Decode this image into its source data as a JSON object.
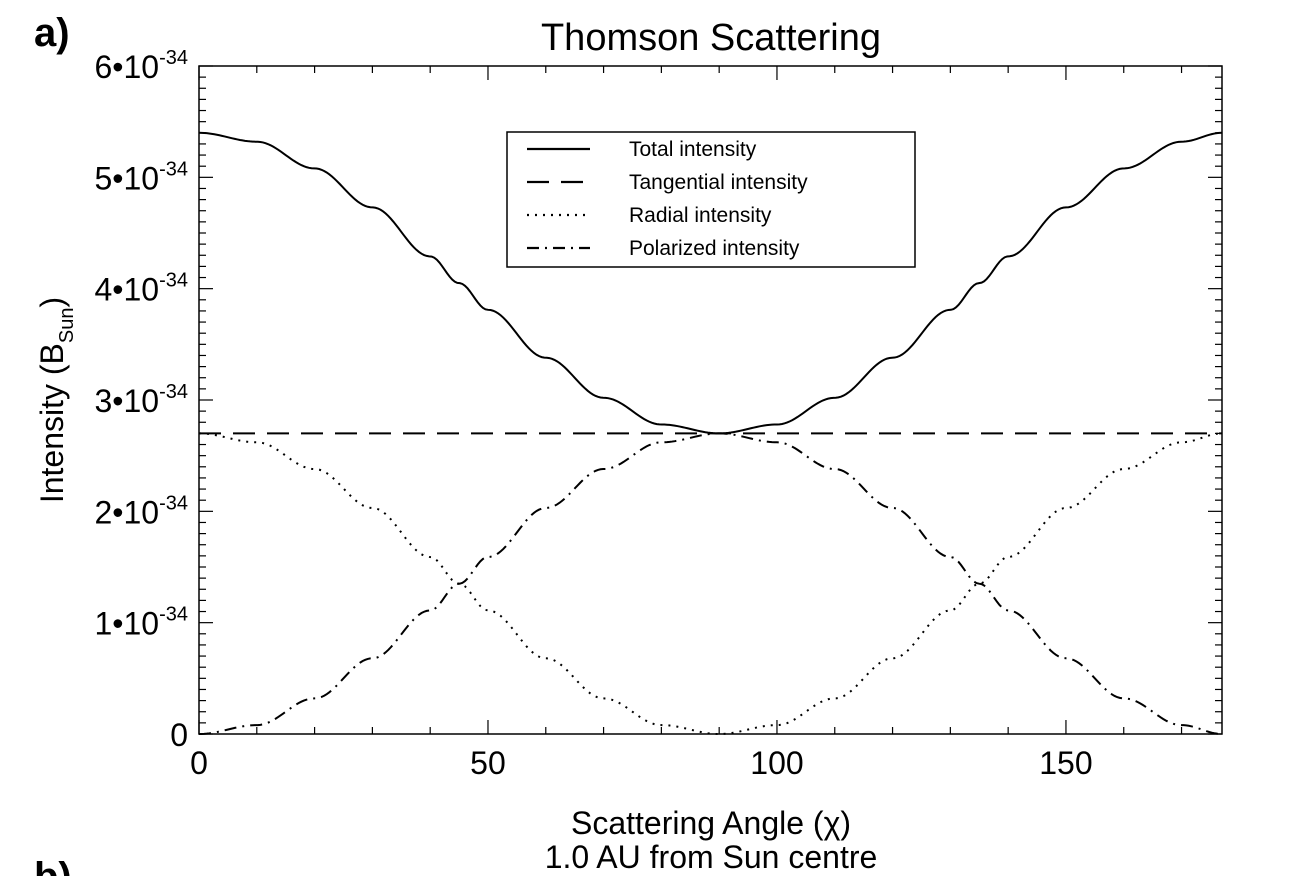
{
  "panel_labels": {
    "a": "a)",
    "b": "b)"
  },
  "subtitle": "1.0 AU from Sun centre",
  "chart_data": {
    "type": "line",
    "title": "Thomson Scattering",
    "xlabel": "Scattering Angle (χ)",
    "ylabel": {
      "main": "Intensity (B",
      "sub": "Sun",
      "close": ")"
    },
    "xlim": [
      0,
      177
    ],
    "ylim": [
      0,
      6e-34
    ],
    "x_ticks": [
      0,
      50,
      100,
      150
    ],
    "x_tick_labels": [
      "0",
      "50",
      "100",
      "150"
    ],
    "y_ticks": [
      0,
      1e-34,
      2e-34,
      3e-34,
      4e-34,
      5e-34,
      6e-34
    ],
    "y_tick_labels": [
      {
        "base": "0",
        "exp": ""
      },
      {
        "base": "1•10",
        "exp": "-34"
      },
      {
        "base": "2•10",
        "exp": "-34"
      },
      {
        "base": "3•10",
        "exp": "-34"
      },
      {
        "base": "4•10",
        "exp": "-34"
      },
      {
        "base": "5•10",
        "exp": "-34"
      },
      {
        "base": "6•10",
        "exp": "-34"
      }
    ],
    "x_minor_step": 10,
    "y_minor_step": 1e-35,
    "legend_position": "top-center",
    "x": [
      0,
      10,
      20,
      30,
      40,
      45,
      50,
      60,
      70,
      80,
      90,
      100,
      110,
      120,
      130,
      135,
      140,
      150,
      160,
      170,
      177
    ],
    "series": [
      {
        "name": "Total intensity",
        "dash": "solid",
        "values": [
          5.4e-34,
          5.32e-34,
          5.08e-34,
          4.73e-34,
          4.29e-34,
          4.05e-34,
          3.81e-34,
          3.38e-34,
          3.02e-34,
          2.78e-34,
          2.7e-34,
          2.78e-34,
          3.02e-34,
          3.38e-34,
          3.81e-34,
          4.05e-34,
          4.29e-34,
          4.73e-34,
          5.08e-34,
          5.32e-34,
          5.4e-34
        ]
      },
      {
        "name": "Tangential intensity",
        "dash": "dashed",
        "values": [
          2.7e-34,
          2.7e-34,
          2.7e-34,
          2.7e-34,
          2.7e-34,
          2.7e-34,
          2.7e-34,
          2.7e-34,
          2.7e-34,
          2.7e-34,
          2.7e-34,
          2.7e-34,
          2.7e-34,
          2.7e-34,
          2.7e-34,
          2.7e-34,
          2.7e-34,
          2.7e-34,
          2.7e-34,
          2.7e-34,
          2.7e-34
        ]
      },
      {
        "name": "Radial intensity",
        "dash": "dotted",
        "values": [
          2.7e-34,
          2.62e-34,
          2.38e-34,
          2.03e-34,
          1.59e-34,
          1.35e-34,
          1.11e-34,
          6.8e-35,
          3.2e-35,
          8e-36,
          0,
          8e-36,
          3.2e-35,
          6.8e-35,
          1.11e-34,
          1.35e-34,
          1.59e-34,
          2.03e-34,
          2.38e-34,
          2.62e-34,
          2.7e-34
        ]
      },
      {
        "name": "Polarized intensity",
        "dash": "dashdot",
        "values": [
          0,
          8e-36,
          3.2e-35,
          6.8e-35,
          1.11e-34,
          1.35e-34,
          1.59e-34,
          2.03e-34,
          2.38e-34,
          2.62e-34,
          2.7e-34,
          2.62e-34,
          2.38e-34,
          2.03e-34,
          1.59e-34,
          1.35e-34,
          1.11e-34,
          6.8e-35,
          3.2e-35,
          8e-36,
          0
        ]
      }
    ]
  }
}
